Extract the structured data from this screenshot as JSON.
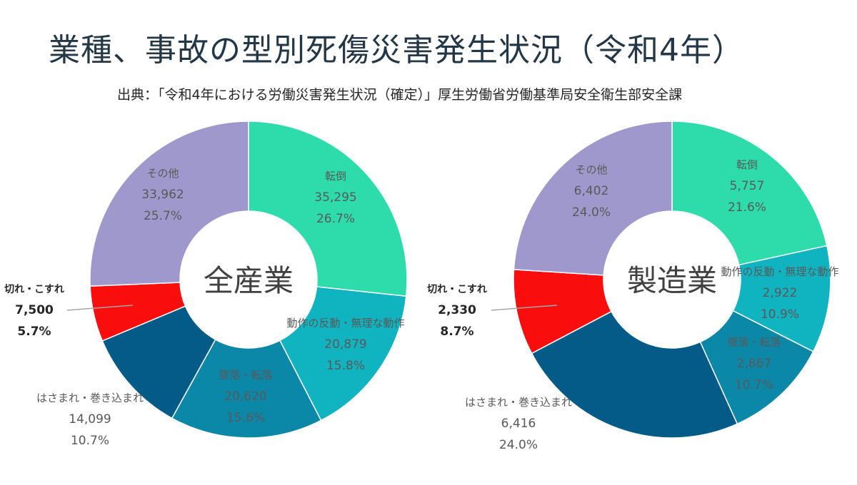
{
  "header": {
    "title": "業種、事故の型別死傷災害発生状況（令和4年）",
    "subtitle": "出典：「令和4年における労働災害発生状況（確定）」厚生労働省労働基準局安全衛生部安全課"
  },
  "colors": {
    "転倒": "#2edcab",
    "動作の反動・無理な動作": "#10b3c0",
    "墜落・転落": "#0b87a8",
    "はさまれ・巻き込まれ": "#045b87",
    "切れ・こすれ": "#fa0d0d",
    "その他": "#9e98cc"
  },
  "chart_data": [
    {
      "type": "pie",
      "donut": true,
      "center_label": "全産業",
      "slices": [
        {
          "label": "転倒",
          "value": 35295,
          "value_text": "35,295",
          "percent_text": "26.7%"
        },
        {
          "label": "動作の反動・無理な動作",
          "value": 20879,
          "value_text": "20,879",
          "percent_text": "15.8%"
        },
        {
          "label": "墜落・転落",
          "value": 20620,
          "value_text": "20,620",
          "percent_text": "15.6%"
        },
        {
          "label": "はさまれ・巻き込まれ",
          "value": 14099,
          "value_text": "14,099",
          "percent_text": "10.7%"
        },
        {
          "label": "切れ・こすれ",
          "value": 7500,
          "value_text": "7,500",
          "percent_text": "5.7%"
        },
        {
          "label": "その他",
          "value": 33962,
          "value_text": "33,962",
          "percent_text": "25.7%"
        }
      ]
    },
    {
      "type": "pie",
      "donut": true,
      "center_label": "製造業",
      "slices": [
        {
          "label": "転倒",
          "value": 5757,
          "value_text": "5,757",
          "percent_text": "21.6%"
        },
        {
          "label": "動作の反動・無理な動作",
          "value": 2922,
          "value_text": "2,922",
          "percent_text": "10.9%"
        },
        {
          "label": "墜落・転落",
          "value": 2867,
          "value_text": "2,867",
          "percent_text": "10.7%"
        },
        {
          "label": "はさまれ・巻き込まれ",
          "value": 6416,
          "value_text": "6,416",
          "percent_text": "24.0%"
        },
        {
          "label": "切れ・こすれ",
          "value": 2330,
          "value_text": "2,330",
          "percent_text": "8.7%"
        },
        {
          "label": "その他",
          "value": 6402,
          "value_text": "6,402",
          "percent_text": "24.0%"
        }
      ]
    }
  ]
}
